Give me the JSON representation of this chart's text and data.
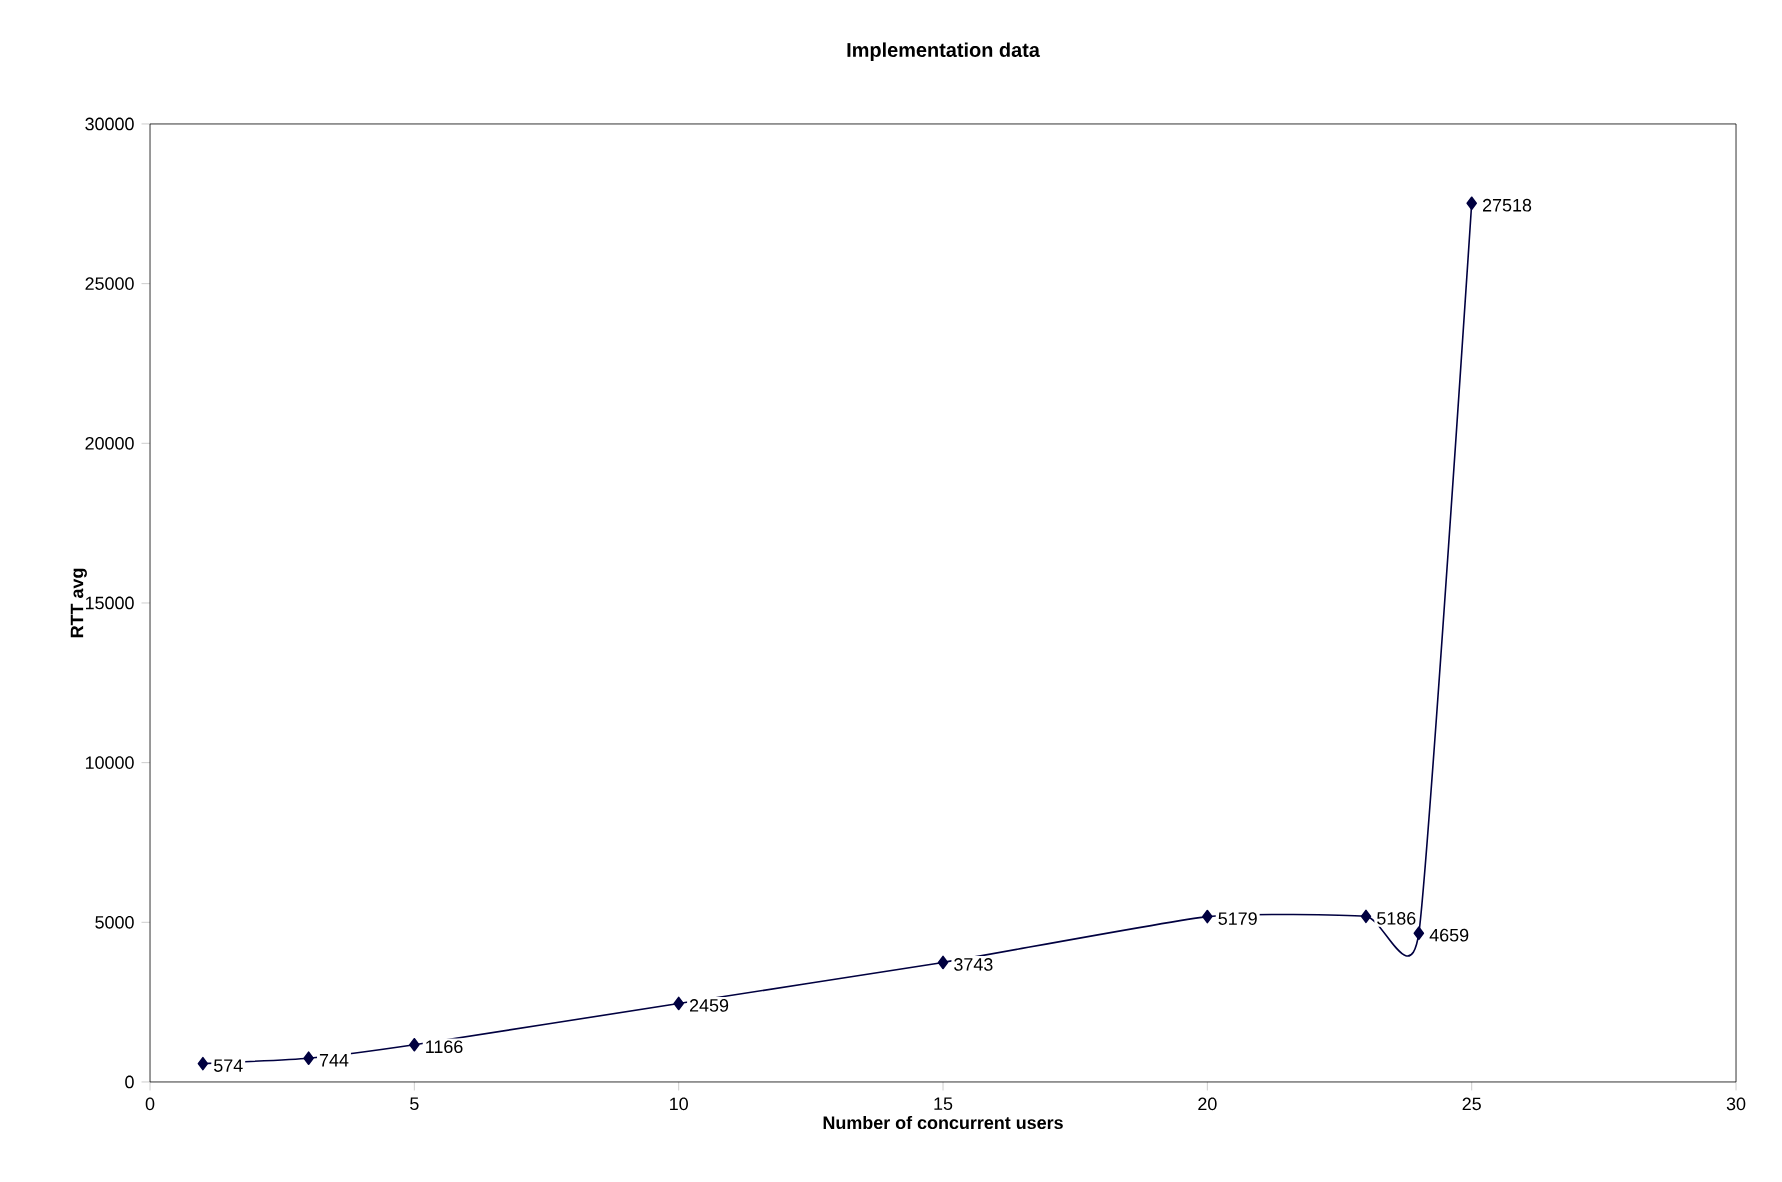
{
  "chart_data": {
    "type": "line",
    "title": "Implementation data",
    "xlabel": "Number of concurrent users",
    "ylabel": "RTT avg",
    "x": [
      1,
      3,
      5,
      10,
      15,
      20,
      23,
      24,
      25
    ],
    "series": [
      {
        "color": "#000040",
        "values": [
          574,
          744,
          1166,
          2459,
          3743,
          5179,
          5186,
          4659,
          27518
        ]
      }
    ],
    "xlim": [
      0,
      30
    ],
    "xticks": [
      0,
      5,
      10,
      15,
      20,
      25,
      30
    ],
    "ylim": [
      0,
      30000
    ],
    "yticks": [
      0,
      5000,
      10000,
      15000,
      20000,
      25000,
      30000
    ],
    "data_labels": true,
    "marker": "diamond",
    "line_style": "solid",
    "grid": false
  }
}
